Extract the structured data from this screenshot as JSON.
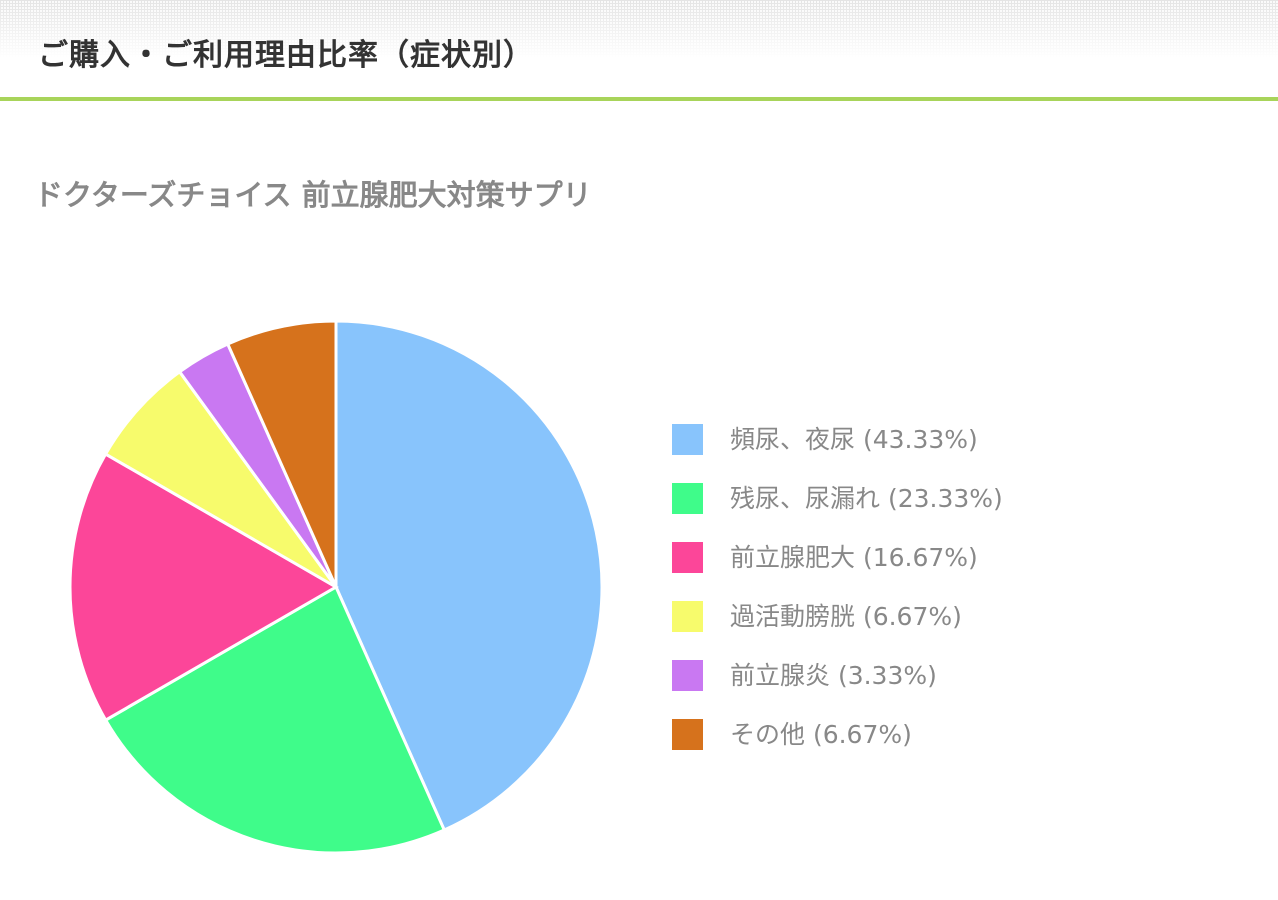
{
  "header": {
    "title": "ご購入・ご利用理由比率（症状別）",
    "accent_color": "#a8d45a"
  },
  "chart_data": {
    "type": "pie",
    "title": "ドクターズチョイス 前立腺肥大対策サプリ",
    "start": "12 o'clock, clockwise",
    "legend_position": "right",
    "slices": [
      {
        "label": "頻尿、夜尿",
        "value": 43.33,
        "legend": "頻尿、夜尿 (43.33%)",
        "color": "#88c4fc"
      },
      {
        "label": "残尿、尿漏れ",
        "value": 23.33,
        "legend": "残尿、尿漏れ (23.33%)",
        "color": "#3ffc8a"
      },
      {
        "label": "前立腺肥大",
        "value": 16.67,
        "legend": "前立腺肥大 (16.67%)",
        "color": "#fc4699"
      },
      {
        "label": "過活動膀胱",
        "value": 6.67,
        "legend": "過活動膀胱 (6.67%)",
        "color": "#f7fb6c"
      },
      {
        "label": "前立腺炎",
        "value": 3.33,
        "legend": "前立腺炎 (3.33%)",
        "color": "#c978f2"
      },
      {
        "label": "その他",
        "value": 6.67,
        "legend": "その他 (6.67%)",
        "color": "#d6721c"
      }
    ]
  }
}
